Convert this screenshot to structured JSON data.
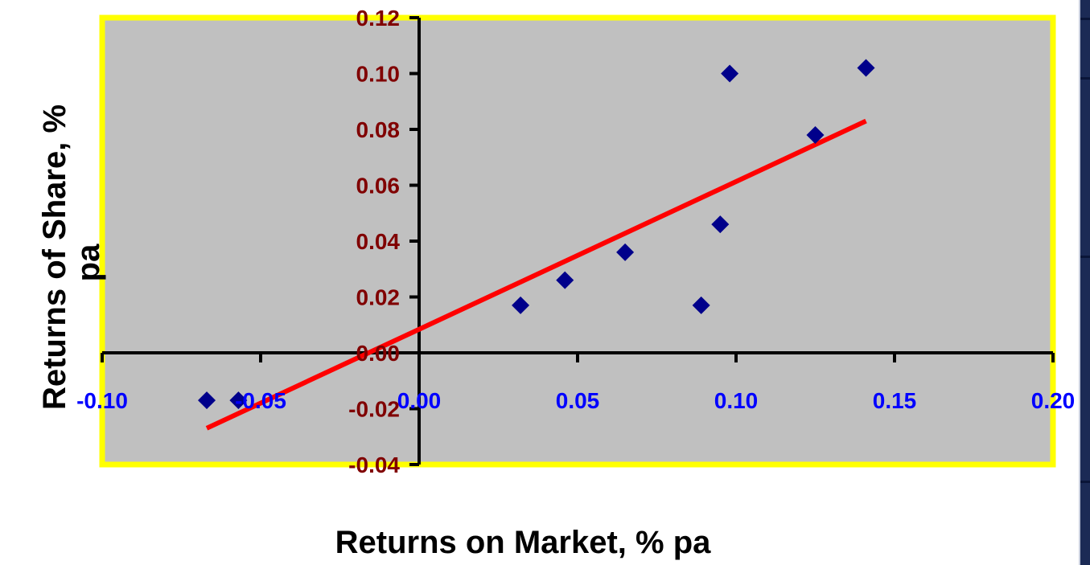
{
  "chart_data": {
    "type": "scatter",
    "title": "",
    "xlabel": "Returns on Market, % pa",
    "ylabel_line1": "Returns of Share, %",
    "ylabel_line2": "pa",
    "xlim": [
      -0.1,
      0.2
    ],
    "ylim": [
      -0.04,
      0.12
    ],
    "x_ticks": [
      "-0.10",
      "-0.05",
      "0.00",
      "0.05",
      "0.10",
      "0.15",
      "0.20"
    ],
    "y_ticks": [
      "-0.04",
      "-0.02",
      "0.00",
      "0.02",
      "0.04",
      "0.06",
      "0.08",
      "0.10",
      "0.12"
    ],
    "grid": false,
    "legend": "none",
    "series": [
      {
        "x": [
          -0.067,
          -0.057,
          0.032,
          0.046,
          0.065,
          0.089,
          0.095,
          0.098,
          0.125,
          0.141
        ],
        "y": [
          -0.017,
          -0.017,
          0.017,
          0.026,
          0.036,
          0.017,
          0.046,
          0.1,
          0.078,
          0.102
        ]
      }
    ],
    "trendline": {
      "x": [
        -0.067,
        0.141
      ],
      "y": [
        -0.027,
        0.083
      ]
    },
    "colors": {
      "plot_background": "#c0c0c0",
      "plot_border": "#ffff00",
      "markers": "#00008b",
      "trendline": "#ff0000",
      "x_tick_labels": "#0000ff",
      "y_tick_labels": "#800000"
    }
  }
}
